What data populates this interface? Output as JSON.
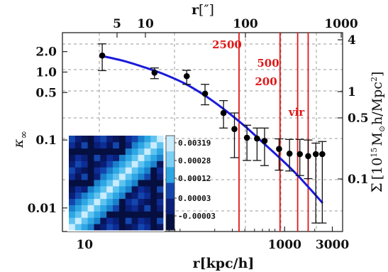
{
  "chart_data": {
    "type": "scatter",
    "x_scale": "log",
    "y_scale": "log",
    "xlim": [
      6,
      3800
    ],
    "ylim": [
      0.0045,
      3.8
    ],
    "grid": true,
    "xlabel": "r[kpc/h]",
    "xlabel_main": "r",
    "xlabel_unit": "[kpc/h]",
    "top_xlabel_main": "r",
    "top_xlabel_unit": "[″]",
    "ylabel": "κ∞",
    "ylabel_main": "κ",
    "ylabel_sub": "∞",
    "right_ylabel": "Σ [10¹⁵ M☉ h/Mpc²]",
    "right_ylabel_parts": {
      "sym": "Σ",
      "pre": "[10",
      "exp1": "15",
      "m": "M",
      "sun": "⊙",
      "mid": "h/Mpc",
      "exp2": "2",
      "post": "]"
    },
    "x_ticks": [
      {
        "value": 10,
        "label": "10"
      },
      {
        "value": 1000,
        "label": "1000"
      },
      {
        "value": 3000,
        "label": "3000"
      }
    ],
    "y_ticks": [
      {
        "value": 2.0,
        "label": "2.0"
      },
      {
        "value": 1.0,
        "label": "1.0"
      },
      {
        "value": 0.5,
        "label": "0.5"
      },
      {
        "value": 0.1,
        "label": "0.1"
      },
      {
        "value": 0.01,
        "label": "0.01"
      }
    ],
    "top_ticks": [
      {
        "label": "5"
      },
      {
        "label": "10"
      },
      {
        "label": "100"
      },
      {
        "label": "1000"
      }
    ],
    "right_ticks": [
      {
        "label": "4"
      },
      {
        "label": "1"
      },
      {
        "label": "0.5"
      },
      {
        "label": "0.1"
      }
    ],
    "series": [
      {
        "kind": "points_with_errorbars",
        "color": "#000000",
        "points": [
          {
            "x": 15,
            "y": 1.75,
            "ylo": 1.05,
            "yhi": 2.6
          },
          {
            "x": 50,
            "y": 0.98,
            "ylo": 0.8,
            "yhi": 1.15
          },
          {
            "x": 105,
            "y": 0.87,
            "ylo": 0.66,
            "yhi": 1.06
          },
          {
            "x": 160,
            "y": 0.48,
            "ylo": 0.33,
            "yhi": 0.66
          },
          {
            "x": 245,
            "y": 0.25,
            "ylo": 0.15,
            "yhi": 0.38
          },
          {
            "x": 315,
            "y": 0.145,
            "ylo": 0.055,
            "yhi": 0.25
          },
          {
            "x": 420,
            "y": 0.108,
            "ylo": 0.05,
            "yhi": 0.165
          },
          {
            "x": 530,
            "y": 0.105,
            "ylo": 0.05,
            "yhi": 0.15
          },
          {
            "x": 630,
            "y": 0.097,
            "ylo": 0.042,
            "yhi": 0.15
          },
          {
            "x": 880,
            "y": 0.074,
            "ylo": 0.036,
            "yhi": 0.104
          },
          {
            "x": 1120,
            "y": 0.063,
            "ylo": 0.035,
            "yhi": 0.102
          },
          {
            "x": 1420,
            "y": 0.062,
            "ylo": 0.03,
            "yhi": 0.102
          },
          {
            "x": 1720,
            "y": 0.058,
            "ylo": 0.027,
            "yhi": 0.1
          },
          {
            "x": 2050,
            "y": 0.062,
            "ylo": 0.006,
            "yhi": 0.09
          },
          {
            "x": 2380,
            "y": 0.062,
            "ylo": 0.006,
            "yhi": 0.095
          }
        ]
      },
      {
        "kind": "curve",
        "color": "#1a1adc",
        "points": [
          {
            "x": 15,
            "y": 1.72
          },
          {
            "x": 25,
            "y": 1.45
          },
          {
            "x": 40,
            "y": 1.17
          },
          {
            "x": 60,
            "y": 0.95
          },
          {
            "x": 100,
            "y": 0.68
          },
          {
            "x": 160,
            "y": 0.45
          },
          {
            "x": 250,
            "y": 0.28
          },
          {
            "x": 400,
            "y": 0.16
          },
          {
            "x": 600,
            "y": 0.093
          },
          {
            "x": 900,
            "y": 0.054
          },
          {
            "x": 1300,
            "y": 0.032
          },
          {
            "x": 1800,
            "y": 0.019
          },
          {
            "x": 2400,
            "y": 0.0118
          }
        ]
      }
    ],
    "vlines": [
      {
        "x": 350,
        "label": "2500"
      },
      {
        "x": 900,
        "label": "500"
      },
      {
        "x": 1350,
        "label": "200"
      },
      {
        "x": 1720,
        "label": "vir"
      }
    ],
    "vline_color": "#e01818",
    "inset": {
      "type": "heatmap",
      "colorbar_labels": [
        "0.00319",
        "0.00028",
        "0.00012",
        "0.00003",
        "-0.00003"
      ]
    }
  }
}
